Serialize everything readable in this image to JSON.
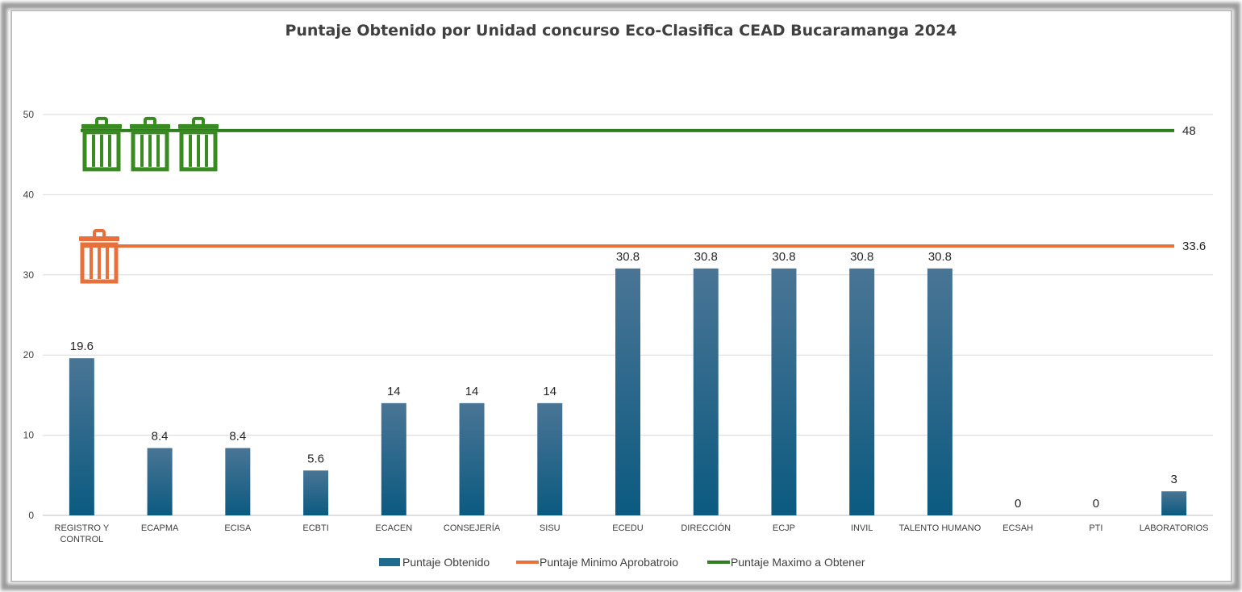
{
  "chart_data": {
    "type": "bar",
    "title": "Puntaje Obtenido por Unidad concurso Eco-Clasifica CEAD Bucaramanga 2024",
    "categories": [
      [
        "REGISTRO Y",
        "CONTROL"
      ],
      [
        "ECAPMA"
      ],
      [
        "ECISA"
      ],
      [
        "ECBTI"
      ],
      [
        "ECACEN"
      ],
      [
        "CONSEJERÍA"
      ],
      [
        "SISU"
      ],
      [
        "ECEDU"
      ],
      [
        "DIRECCIÓN"
      ],
      [
        "ECJP"
      ],
      [
        "INVIL"
      ],
      [
        "TALENTO HUMANO"
      ],
      [
        "ECSAH"
      ],
      [
        "PTI"
      ],
      [
        "LABORATORIOS"
      ]
    ],
    "series": [
      {
        "name": "Puntaje Obtenido",
        "kind": "bar",
        "color": "#1f6b8f",
        "values": [
          19.6,
          8.4,
          8.4,
          5.6,
          14,
          14,
          14,
          30.8,
          30.8,
          30.8,
          30.8,
          30.8,
          0,
          0,
          3
        ]
      },
      {
        "name": "Puntaje Minimo Aprobatroio",
        "kind": "line",
        "color": "#e8703a",
        "value": 33.6
      },
      {
        "name": "Puntaje Maximo a Obtener",
        "kind": "line",
        "color": "#2e7d1e",
        "value": 48
      }
    ],
    "y_ticks": [
      0,
      10,
      20,
      30,
      40,
      50
    ],
    "ylim": [
      0,
      50
    ],
    "grid": true,
    "legend_position": "bottom",
    "icons": [
      {
        "name": "trash-bin-icon",
        "color": "#e8703a",
        "count": 1,
        "line": "Puntaje Minimo Aprobatroio"
      },
      {
        "name": "trash-bin-icon",
        "color": "#3a8a22",
        "count": 3,
        "line": "Puntaje Maximo a Obtener"
      }
    ]
  }
}
